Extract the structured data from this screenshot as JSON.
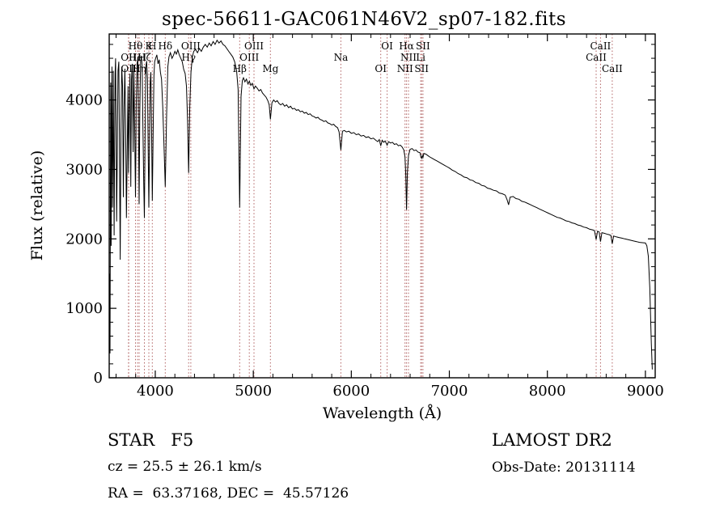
{
  "title": "spec-56611-GAC061N46V2_sp07-182.fits",
  "annotations": {
    "class_label": "STAR   F5",
    "cz_label": "cz = 25.5 ± 26.1 km/s",
    "radec_label": "RA =  63.37168, DEC =  45.57126",
    "survey_label": "LAMOST DR2",
    "obsdate_label": "Obs-Date: 20131114"
  },
  "chart_data": {
    "type": "line",
    "title": "spec-56611-GAC061N46V2_sp07-182.fits",
    "xlabel": "Wavelength (Å)",
    "ylabel": "Flux (relative)",
    "xlim": [
      3530,
      9100
    ],
    "ylim": [
      0,
      4950
    ],
    "xticks": [
      4000,
      5000,
      6000,
      7000,
      8000,
      9000
    ],
    "yticks": [
      0,
      1000,
      2000,
      3000,
      4000
    ],
    "grid": false,
    "legend": "none",
    "spectrum_color": "#000000",
    "line_marker_color": "#b06060",
    "spectral_lines": [
      {
        "label": "OII",
        "wavelength": 3727,
        "row": 1
      },
      {
        "label": "OII",
        "wavelength": 3729,
        "row": 2
      },
      {
        "label": "Hθ",
        "wavelength": 3798,
        "row": 0
      },
      {
        "label": "HeI",
        "wavelength": 3820,
        "row": 1
      },
      {
        "label": "Hη",
        "wavelength": 3835,
        "row": 2
      },
      {
        "label": "Hζ",
        "wavelength": 3889,
        "row": 1
      },
      {
        "label": "K",
        "wavelength": 3934,
        "row": 0
      },
      {
        "label": "H",
        "wavelength": 3970,
        "row": 0
      },
      {
        "label": "Hδ",
        "wavelength": 4102,
        "row": 0
      },
      {
        "label": "Hγ",
        "wavelength": 4340,
        "row": 1
      },
      {
        "label": "OIII",
        "wavelength": 4363,
        "row": 0
      },
      {
        "label": "Hβ",
        "wavelength": 4861,
        "row": 2
      },
      {
        "label": "OIII",
        "wavelength": 4959,
        "row": 1
      },
      {
        "label": "OIII",
        "wavelength": 5007,
        "row": 0
      },
      {
        "label": "Mg",
        "wavelength": 5175,
        "row": 2
      },
      {
        "label": "Na",
        "wavelength": 5893,
        "row": 1
      },
      {
        "label": "OI",
        "wavelength": 6300,
        "row": 2
      },
      {
        "label": "OI",
        "wavelength": 6365,
        "row": 0
      },
      {
        "label": "NII",
        "wavelength": 6548,
        "row": 2
      },
      {
        "label": "Hα",
        "wavelength": 6563,
        "row": 0
      },
      {
        "label": "NII",
        "wavelength": 6583,
        "row": 1
      },
      {
        "label": "Li",
        "wavelength": 6708,
        "row": 1
      },
      {
        "label": "SII",
        "wavelength": 6717,
        "row": 2
      },
      {
        "label": "SII",
        "wavelength": 6731,
        "row": 0
      },
      {
        "label": "CaII",
        "wavelength": 8498,
        "row": 1
      },
      {
        "label": "CaII",
        "wavelength": 8542,
        "row": 0
      },
      {
        "label": "CaII",
        "wavelength": 8662,
        "row": 2
      }
    ],
    "spectrum": [
      [
        3535,
        1500
      ],
      [
        3538,
        350
      ],
      [
        3542,
        2700
      ],
      [
        3546,
        4250
      ],
      [
        3550,
        1900
      ],
      [
        3554,
        3600
      ],
      [
        3558,
        4480
      ],
      [
        3563,
        2450
      ],
      [
        3568,
        3300
      ],
      [
        3572,
        4420
      ],
      [
        3576,
        3100
      ],
      [
        3580,
        2050
      ],
      [
        3585,
        3400
      ],
      [
        3590,
        4380
      ],
      [
        3595,
        4600
      ],
      [
        3600,
        3650
      ],
      [
        3606,
        2250
      ],
      [
        3612,
        3100
      ],
      [
        3620,
        4420
      ],
      [
        3628,
        4550
      ],
      [
        3635,
        3300
      ],
      [
        3642,
        1700
      ],
      [
        3650,
        3500
      ],
      [
        3658,
        4480
      ],
      [
        3666,
        4200
      ],
      [
        3674,
        2600
      ],
      [
        3682,
        3900
      ],
      [
        3690,
        4450
      ],
      [
        3698,
        3500
      ],
      [
        3706,
        2300
      ],
      [
        3714,
        3300
      ],
      [
        3722,
        4200
      ],
      [
        3727,
        2950
      ],
      [
        3734,
        3700
      ],
      [
        3742,
        4380
      ],
      [
        3750,
        2750
      ],
      [
        3758,
        4300
      ],
      [
        3766,
        4520
      ],
      [
        3774,
        3250
      ],
      [
        3782,
        4480
      ],
      [
        3790,
        3600
      ],
      [
        3798,
        2600
      ],
      [
        3806,
        3900
      ],
      [
        3814,
        4520
      ],
      [
        3822,
        4600
      ],
      [
        3830,
        3400
      ],
      [
        3835,
        2500
      ],
      [
        3842,
        3800
      ],
      [
        3850,
        4550
      ],
      [
        3858,
        4620
      ],
      [
        3866,
        4500
      ],
      [
        3874,
        3600
      ],
      [
        3882,
        2800
      ],
      [
        3889,
        2300
      ],
      [
        3896,
        3500
      ],
      [
        3904,
        4480
      ],
      [
        3912,
        4560
      ],
      [
        3920,
        4300
      ],
      [
        3927,
        3400
      ],
      [
        3934,
        2450
      ],
      [
        3941,
        3300
      ],
      [
        3948,
        4250
      ],
      [
        3955,
        4400
      ],
      [
        3962,
        3600
      ],
      [
        3970,
        2550
      ],
      [
        3978,
        3500
      ],
      [
        3986,
        4350
      ],
      [
        3994,
        4550
      ],
      [
        4004,
        4600
      ],
      [
        4016,
        4650
      ],
      [
        4028,
        4520
      ],
      [
        4040,
        4580
      ],
      [
        4052,
        4400
      ],
      [
        4064,
        4300
      ],
      [
        4076,
        3900
      ],
      [
        4088,
        3400
      ],
      [
        4102,
        2750
      ],
      [
        4116,
        3800
      ],
      [
        4128,
        4480
      ],
      [
        4140,
        4620
      ],
      [
        4155,
        4680
      ],
      [
        4170,
        4600
      ],
      [
        4185,
        4640
      ],
      [
        4200,
        4700
      ],
      [
        4215,
        4660
      ],
      [
        4230,
        4720
      ],
      [
        4245,
        4650
      ],
      [
        4260,
        4600
      ],
      [
        4275,
        4550
      ],
      [
        4290,
        4440
      ],
      [
        4305,
        4380
      ],
      [
        4318,
        4200
      ],
      [
        4330,
        3700
      ],
      [
        4340,
        2950
      ],
      [
        4352,
        3900
      ],
      [
        4364,
        4400
      ],
      [
        4378,
        4620
      ],
      [
        4392,
        4700
      ],
      [
        4410,
        4730
      ],
      [
        4430,
        4680
      ],
      [
        4450,
        4740
      ],
      [
        4470,
        4700
      ],
      [
        4490,
        4760
      ],
      [
        4510,
        4800
      ],
      [
        4530,
        4760
      ],
      [
        4550,
        4820
      ],
      [
        4570,
        4780
      ],
      [
        4590,
        4840
      ],
      [
        4610,
        4800
      ],
      [
        4630,
        4860
      ],
      [
        4650,
        4820
      ],
      [
        4670,
        4850
      ],
      [
        4690,
        4800
      ],
      [
        4710,
        4780
      ],
      [
        4730,
        4740
      ],
      [
        4750,
        4700
      ],
      [
        4770,
        4660
      ],
      [
        4790,
        4620
      ],
      [
        4810,
        4550
      ],
      [
        4830,
        4420
      ],
      [
        4845,
        4150
      ],
      [
        4861,
        2450
      ],
      [
        4875,
        4050
      ],
      [
        4888,
        4280
      ],
      [
        4900,
        4320
      ],
      [
        4915,
        4260
      ],
      [
        4930,
        4300
      ],
      [
        4945,
        4230
      ],
      [
        4960,
        4270
      ],
      [
        4975,
        4210
      ],
      [
        4990,
        4240
      ],
      [
        5007,
        4160
      ],
      [
        5022,
        4200
      ],
      [
        5040,
        4170
      ],
      [
        5058,
        4130
      ],
      [
        5076,
        4150
      ],
      [
        5094,
        4100
      ],
      [
        5112,
        4070
      ],
      [
        5130,
        4040
      ],
      [
        5148,
        3990
      ],
      [
        5162,
        3930
      ],
      [
        5175,
        3720
      ],
      [
        5190,
        3960
      ],
      [
        5208,
        4000
      ],
      [
        5226,
        3970
      ],
      [
        5244,
        3990
      ],
      [
        5262,
        3950
      ],
      [
        5280,
        3930
      ],
      [
        5300,
        3950
      ],
      [
        5320,
        3910
      ],
      [
        5340,
        3930
      ],
      [
        5360,
        3890
      ],
      [
        5380,
        3910
      ],
      [
        5400,
        3870
      ],
      [
        5420,
        3880
      ],
      [
        5440,
        3850
      ],
      [
        5460,
        3860
      ],
      [
        5480,
        3830
      ],
      [
        5500,
        3840
      ],
      [
        5520,
        3810
      ],
      [
        5540,
        3820
      ],
      [
        5560,
        3790
      ],
      [
        5580,
        3800
      ],
      [
        5600,
        3770
      ],
      [
        5620,
        3760
      ],
      [
        5640,
        3740
      ],
      [
        5660,
        3750
      ],
      [
        5680,
        3720
      ],
      [
        5700,
        3710
      ],
      [
        5720,
        3690
      ],
      [
        5740,
        3700
      ],
      [
        5760,
        3670
      ],
      [
        5780,
        3660
      ],
      [
        5800,
        3640
      ],
      [
        5820,
        3650
      ],
      [
        5840,
        3620
      ],
      [
        5860,
        3600
      ],
      [
        5875,
        3540
      ],
      [
        5893,
        3280
      ],
      [
        5910,
        3550
      ],
      [
        5930,
        3560
      ],
      [
        5950,
        3540
      ],
      [
        5975,
        3550
      ],
      [
        6000,
        3520
      ],
      [
        6025,
        3530
      ],
      [
        6050,
        3500
      ],
      [
        6075,
        3510
      ],
      [
        6100,
        3480
      ],
      [
        6125,
        3490
      ],
      [
        6150,
        3460
      ],
      [
        6175,
        3470
      ],
      [
        6200,
        3440
      ],
      [
        6225,
        3450
      ],
      [
        6250,
        3420
      ],
      [
        6270,
        3400
      ],
      [
        6285,
        3430
      ],
      [
        6300,
        3340
      ],
      [
        6315,
        3420
      ],
      [
        6330,
        3390
      ],
      [
        6345,
        3410
      ],
      [
        6365,
        3350
      ],
      [
        6380,
        3400
      ],
      [
        6400,
        3380
      ],
      [
        6420,
        3390
      ],
      [
        6440,
        3360
      ],
      [
        6460,
        3370
      ],
      [
        6480,
        3340
      ],
      [
        6500,
        3350
      ],
      [
        6520,
        3320
      ],
      [
        6535,
        3280
      ],
      [
        6548,
        3180
      ],
      [
        6556,
        2900
      ],
      [
        6563,
        2420
      ],
      [
        6572,
        2950
      ],
      [
        6583,
        3200
      ],
      [
        6600,
        3290
      ],
      [
        6620,
        3300
      ],
      [
        6640,
        3270
      ],
      [
        6660,
        3280
      ],
      [
        6680,
        3250
      ],
      [
        6700,
        3240
      ],
      [
        6708,
        3190
      ],
      [
        6717,
        3160
      ],
      [
        6724,
        3200
      ],
      [
        6731,
        3170
      ],
      [
        6740,
        3230
      ],
      [
        6760,
        3220
      ],
      [
        6780,
        3200
      ],
      [
        6800,
        3180
      ],
      [
        6825,
        3160
      ],
      [
        6850,
        3140
      ],
      [
        6875,
        3120
      ],
      [
        6900,
        3100
      ],
      [
        6925,
        3080
      ],
      [
        6950,
        3060
      ],
      [
        6975,
        3040
      ],
      [
        7000,
        3020
      ],
      [
        7030,
        2990
      ],
      [
        7060,
        2970
      ],
      [
        7090,
        2940
      ],
      [
        7120,
        2920
      ],
      [
        7150,
        2890
      ],
      [
        7180,
        2880
      ],
      [
        7210,
        2850
      ],
      [
        7240,
        2840
      ],
      [
        7270,
        2810
      ],
      [
        7300,
        2800
      ],
      [
        7330,
        2770
      ],
      [
        7360,
        2760
      ],
      [
        7390,
        2730
      ],
      [
        7420,
        2720
      ],
      [
        7450,
        2700
      ],
      [
        7480,
        2690
      ],
      [
        7510,
        2660
      ],
      [
        7540,
        2650
      ],
      [
        7570,
        2630
      ],
      [
        7590,
        2560
      ],
      [
        7605,
        2490
      ],
      [
        7620,
        2600
      ],
      [
        7650,
        2610
      ],
      [
        7680,
        2580
      ],
      [
        7710,
        2570
      ],
      [
        7740,
        2540
      ],
      [
        7770,
        2530
      ],
      [
        7800,
        2510
      ],
      [
        7830,
        2490
      ],
      [
        7860,
        2470
      ],
      [
        7890,
        2450
      ],
      [
        7920,
        2430
      ],
      [
        7950,
        2410
      ],
      [
        7980,
        2390
      ],
      [
        8010,
        2370
      ],
      [
        8040,
        2350
      ],
      [
        8070,
        2330
      ],
      [
        8100,
        2310
      ],
      [
        8130,
        2300
      ],
      [
        8160,
        2280
      ],
      [
        8190,
        2260
      ],
      [
        8220,
        2250
      ],
      [
        8250,
        2230
      ],
      [
        8280,
        2220
      ],
      [
        8310,
        2200
      ],
      [
        8340,
        2190
      ],
      [
        8370,
        2170
      ],
      [
        8400,
        2160
      ],
      [
        8430,
        2140
      ],
      [
        8460,
        2130
      ],
      [
        8480,
        2120
      ],
      [
        8498,
        1990
      ],
      [
        8512,
        2110
      ],
      [
        8528,
        2100
      ],
      [
        8542,
        1960
      ],
      [
        8556,
        2090
      ],
      [
        8580,
        2080
      ],
      [
        8605,
        2070
      ],
      [
        8630,
        2060
      ],
      [
        8648,
        2050
      ],
      [
        8662,
        1930
      ],
      [
        8676,
        2040
      ],
      [
        8700,
        2030
      ],
      [
        8730,
        2020
      ],
      [
        8760,
        2010
      ],
      [
        8790,
        2000
      ],
      [
        8820,
        1990
      ],
      [
        8850,
        1980
      ],
      [
        8880,
        1970
      ],
      [
        8910,
        1960
      ],
      [
        8940,
        1950
      ],
      [
        8970,
        1945
      ],
      [
        9000,
        1940
      ],
      [
        9015,
        1900
      ],
      [
        9030,
        1750
      ],
      [
        9045,
        1300
      ],
      [
        9060,
        500
      ],
      [
        9070,
        120
      ]
    ]
  }
}
